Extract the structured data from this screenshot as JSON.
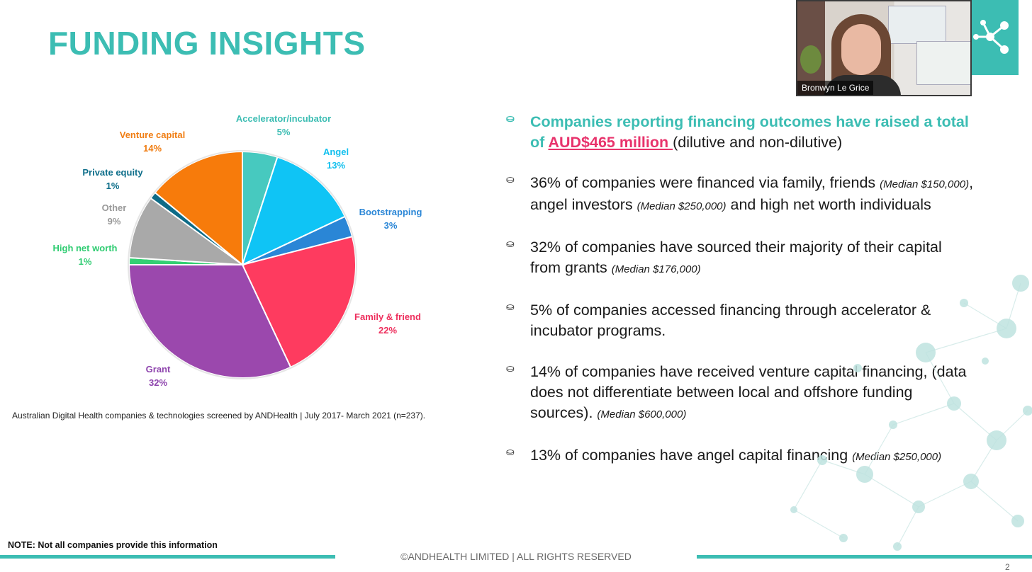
{
  "title": "FUNDING INSIGHTS",
  "colors": {
    "teal": "#3cbdb3",
    "pink": "#e8336c"
  },
  "chart_data": {
    "type": "pie",
    "start_angle_deg": 0,
    "direction": "clockwise",
    "slices": [
      {
        "label": "Accelerator/incubator",
        "pct_label": "5%",
        "value": 5,
        "color": "#47c9bf",
        "label_color": "#3cbdb3"
      },
      {
        "label": "Angel",
        "pct_label": "13%",
        "value": 13,
        "color": "#0fc4f5",
        "label_color": "#12c0ee"
      },
      {
        "label": "Bootstrapping",
        "pct_label": "3%",
        "value": 3,
        "color": "#2a86d6",
        "label_color": "#2a86d6"
      },
      {
        "label": "Family & friend",
        "pct_label": "22%",
        "value": 22,
        "color": "#fe3b5f",
        "label_color": "#ee2f5d"
      },
      {
        "label": "Grant",
        "pct_label": "32%",
        "value": 32,
        "color": "#9b48ad",
        "label_color": "#8e44ad"
      },
      {
        "label": "High net worth",
        "pct_label": "1%",
        "value": 1,
        "color": "#34cf73",
        "label_color": "#2ecc71"
      },
      {
        "label": "Other",
        "pct_label": "9%",
        "value": 9,
        "color": "#a9a9a9",
        "label_color": "#999999"
      },
      {
        "label": "Private equity",
        "pct_label": "1%",
        "value": 1,
        "color": "#0d6b87",
        "label_color": "#0d6e8a"
      },
      {
        "label": "Venture capital",
        "pct_label": "14%",
        "value": 14,
        "color": "#f77b0b",
        "label_color": "#f07d12"
      }
    ]
  },
  "source_note": "Australian Digital Health companies & technologies screened by ANDHealth | July 2017- March 2021 (n=237).",
  "bullet_icon": "coins-icon",
  "bullets": [
    {
      "lead": "Companies reporting financing outcomes have raised a total of ",
      "amount": "AUD$465 million ",
      "rest": "(dilutive and non-dilutive)"
    },
    {
      "t1": "36% of companies were financed via family, friends ",
      "m1": "(Median $150,000)",
      "t2": ", angel investors ",
      "m2": "(Median $250,000)",
      "t3": " and high net worth individuals"
    },
    {
      "t1": "32% of companies have sourced their majority of their capital from grants ",
      "m1": "(Median $176,000)"
    },
    {
      "t1": "5% of companies accessed financing through accelerator & incubator programs."
    },
    {
      "t1": "14% of companies have received venture capital financing, (data does not differentiate between local and offshore funding sources). ",
      "m1": "(Median $600,000)"
    },
    {
      "t1": "13% of companies have angel capital financing ",
      "m1": "(Median $250,000)"
    }
  ],
  "video": {
    "name": "Bronwyn Le Grice"
  },
  "note": "NOTE: Not all companies provide this information",
  "footer": "©ANDHEALTH LIMITED | ALL RIGHTS RESERVED",
  "page_number": "2"
}
